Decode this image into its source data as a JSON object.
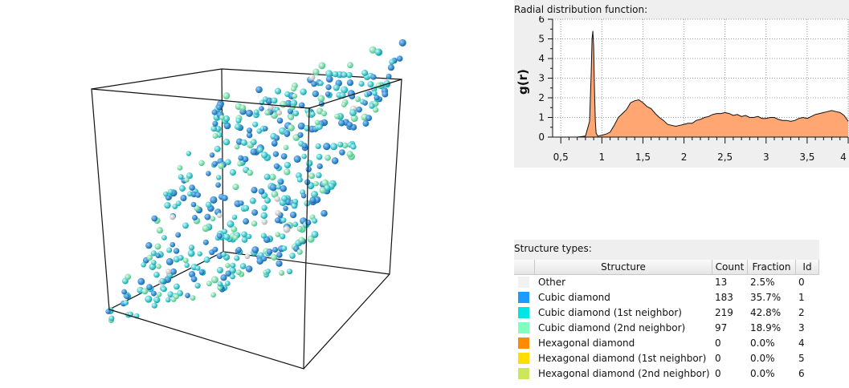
{
  "rdf": {
    "title": "Radial distribution function:",
    "ylabel": "g(r)",
    "fill_color": "#ffa672",
    "line_color": "#111111"
  },
  "chart_data": {
    "type": "area",
    "title": "Radial distribution function:",
    "xlabel": "",
    "ylabel": "g(r)",
    "xlim": [
      0.4,
      4.0
    ],
    "ylim": [
      0,
      6
    ],
    "grid": true,
    "x_ticks": [
      "0,5",
      "1",
      "1,5",
      "2",
      "2,5",
      "3",
      "3,5",
      "4"
    ],
    "y_ticks": [
      "0",
      "1",
      "2",
      "3",
      "4",
      "5",
      "6"
    ],
    "x": [
      0.4,
      0.5,
      0.6,
      0.7,
      0.8,
      0.85,
      0.87,
      0.88,
      0.89,
      0.9,
      0.91,
      0.92,
      0.93,
      0.95,
      1.0,
      1.05,
      1.1,
      1.15,
      1.2,
      1.25,
      1.3,
      1.35,
      1.4,
      1.45,
      1.5,
      1.55,
      1.6,
      1.65,
      1.7,
      1.75,
      1.8,
      1.85,
      1.9,
      1.95,
      2.0,
      2.05,
      2.1,
      2.15,
      2.2,
      2.25,
      2.3,
      2.35,
      2.4,
      2.45,
      2.5,
      2.55,
      2.6,
      2.65,
      2.7,
      2.75,
      2.8,
      2.85,
      2.9,
      2.95,
      3.0,
      3.05,
      3.1,
      3.15,
      3.2,
      3.25,
      3.3,
      3.35,
      3.4,
      3.45,
      3.5,
      3.55,
      3.6,
      3.65,
      3.7,
      3.75,
      3.8,
      3.85,
      3.9,
      3.95,
      4.0
    ],
    "values": [
      0,
      0,
      0,
      0,
      0.05,
      0.8,
      3.2,
      5.0,
      5.4,
      4.6,
      2.5,
      0.8,
      0.2,
      0.05,
      0.1,
      0.15,
      0.25,
      0.6,
      1.0,
      1.2,
      1.4,
      1.75,
      1.85,
      1.9,
      1.75,
      1.55,
      1.45,
      1.2,
      1.0,
      0.85,
      0.65,
      0.6,
      0.55,
      0.6,
      0.65,
      0.7,
      0.7,
      0.85,
      0.9,
      1.0,
      1.05,
      1.15,
      1.2,
      1.2,
      1.25,
      1.2,
      1.1,
      1.15,
      1.05,
      1.1,
      1.0,
      1.0,
      1.05,
      0.95,
      0.95,
      1.0,
      1.0,
      0.9,
      0.85,
      0.85,
      0.8,
      0.85,
      0.95,
      1.0,
      0.95,
      1.05,
      1.15,
      1.2,
      1.25,
      1.3,
      1.35,
      1.3,
      1.25,
      1.1,
      0.8
    ]
  },
  "structure": {
    "title": "Structure types:",
    "headers": [
      "Structure",
      "Count",
      "Fraction",
      "Id"
    ],
    "rows": [
      {
        "name": "Other",
        "count": "13",
        "fraction": "2.5%",
        "id": "0",
        "color": "#f2f2f2"
      },
      {
        "name": "Cubic diamond",
        "count": "183",
        "fraction": "35.7%",
        "id": "1",
        "color": "#1e9bff"
      },
      {
        "name": "Cubic diamond (1st neighbor)",
        "count": "219",
        "fraction": "42.8%",
        "id": "2",
        "color": "#00e6e6"
      },
      {
        "name": "Cubic diamond (2nd neighbor)",
        "count": "97",
        "fraction": "18.9%",
        "id": "3",
        "color": "#80ffbf"
      },
      {
        "name": "Hexagonal diamond",
        "count": "0",
        "fraction": "0.0%",
        "id": "4",
        "color": "#ff8c00"
      },
      {
        "name": "Hexagonal diamond (1st neighbor)",
        "count": "0",
        "fraction": "0.0%",
        "id": "5",
        "color": "#ffdd00"
      },
      {
        "name": "Hexagonal diamond (2nd neighbor)",
        "count": "0",
        "fraction": "0.0%",
        "id": "6",
        "color": "#cce85a"
      }
    ]
  }
}
